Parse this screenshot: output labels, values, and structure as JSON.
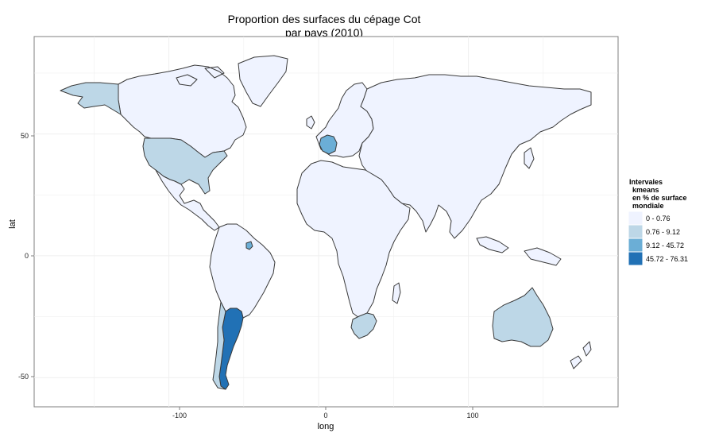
{
  "title": [
    "Proportion des surfaces du cépage Cot",
    "par pays (2010)"
  ],
  "xlabel": "long",
  "ylabel": "lat",
  "x_ticks": [
    "-100",
    "0",
    "100"
  ],
  "y_ticks": [
    "50",
    "0",
    "-50"
  ],
  "legend": {
    "title": [
      "Intervales",
      "kmeans",
      "en % de surface",
      "mondiale"
    ],
    "items": [
      {
        "label": "0 - 0.76",
        "color": "#eff3ff"
      },
      {
        "label": "0.76 - 9.12",
        "color": "#bdd7e7"
      },
      {
        "label": "9.12 - 45.72",
        "color": "#6baed6"
      },
      {
        "label": "45.72 - 76.31",
        "color": "#2171b5"
      }
    ]
  },
  "chart_data": {
    "type": "choropleth",
    "xlim": [
      -190,
      200
    ],
    "ylim": [
      -62,
      90
    ],
    "grid": true,
    "legend_position": "right",
    "classes": [
      "0 - 0.76",
      "0.76 - 9.12",
      "9.12 - 45.72",
      "45.72 - 76.31"
    ],
    "regions": [
      {
        "id": "north-america",
        "class": 0
      },
      {
        "id": "greenland",
        "class": 0
      },
      {
        "id": "alaska",
        "class": 1
      },
      {
        "id": "usa",
        "class": 1
      },
      {
        "id": "mexico-central-america",
        "class": 0
      },
      {
        "id": "south-america",
        "class": 0
      },
      {
        "id": "argentina",
        "class": 3
      },
      {
        "id": "chile",
        "class": 1
      },
      {
        "id": "french-guiana",
        "class": 2
      },
      {
        "id": "france",
        "class": 2
      },
      {
        "id": "europe",
        "class": 0
      },
      {
        "id": "asia",
        "class": 0
      },
      {
        "id": "africa",
        "class": 0
      },
      {
        "id": "south-africa",
        "class": 1
      },
      {
        "id": "australia",
        "class": 1
      },
      {
        "id": "new-zealand",
        "class": 0
      }
    ]
  }
}
